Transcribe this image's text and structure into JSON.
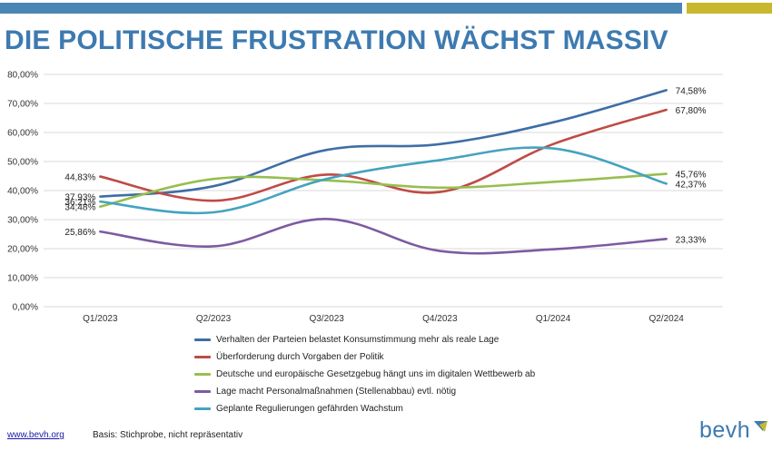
{
  "header": {
    "title": "DIE POLITISCHE FRUSTRATION WÄCHST MASSIV",
    "bar_colors": [
      "#4a86b4",
      "#c7b830"
    ]
  },
  "chart_data": {
    "type": "line",
    "title": "",
    "xlabel": "",
    "ylabel": "",
    "categories": [
      "Q1/2023",
      "Q2/2023",
      "Q3/2023",
      "Q4/2023",
      "Q1/2024",
      "Q2/2024"
    ],
    "ylim": [
      0,
      80
    ],
    "yticks": [
      0,
      10,
      20,
      30,
      40,
      50,
      60,
      70,
      80
    ],
    "ytick_labels": [
      "0,00%",
      "10,00%",
      "20,00%",
      "30,00%",
      "40,00%",
      "50,00%",
      "60,00%",
      "70,00%",
      "80,00%"
    ],
    "grid": true,
    "legend_position": "bottom",
    "series": [
      {
        "name": "Verhalten der Parteien belastet Konsumstimmung mehr als reale Lage",
        "color": "#3e6ea6",
        "values": [
          37.93,
          41.5,
          54.0,
          56.0,
          63.5,
          74.58
        ],
        "labels": [
          {
            "index": 0,
            "text": "37,93%"
          },
          {
            "index": 5,
            "text": "74,58%"
          }
        ]
      },
      {
        "name": "Überforderung durch Vorgaben der Politik",
        "color": "#bf4b46",
        "values": [
          44.83,
          36.5,
          45.5,
          39.5,
          56.0,
          67.8
        ],
        "labels": [
          {
            "index": 0,
            "text": "44,83%"
          },
          {
            "index": 5,
            "text": "67,80%"
          }
        ]
      },
      {
        "name": "Deutsche und europäische Gesetzgebug hängt uns im digitalen Wettbewerb ab",
        "color": "#97be4f",
        "values": [
          34.48,
          44.0,
          43.5,
          41.0,
          43.0,
          45.76
        ],
        "labels": [
          {
            "index": 0,
            "text": "34,48%"
          },
          {
            "index": 5,
            "text": "45,76%"
          }
        ]
      },
      {
        "name": "Lage macht Personalmaßnahmen (Stellenabbau) evtl. nötig",
        "color": "#7d5aa1",
        "values": [
          25.86,
          20.8,
          30.2,
          19.2,
          19.8,
          23.33
        ],
        "labels": [
          {
            "index": 0,
            "text": "25,86%"
          },
          {
            "index": 5,
            "text": "23,33%"
          }
        ]
      },
      {
        "name": "Geplante Regulierungen gefährden Wachstum",
        "color": "#44a3c0",
        "values": [
          36.21,
          32.5,
          44.0,
          50.5,
          54.5,
          42.37
        ],
        "labels": [
          {
            "index": 0,
            "text": "36,21%"
          },
          {
            "index": 5,
            "text": "42,37%"
          }
        ]
      }
    ]
  },
  "footer": {
    "link": "www.bevh.org",
    "note": "Basis: Stichprobe, nicht repräsentativ",
    "logo": "bevh",
    "logo_color": "#3d7ab0"
  }
}
